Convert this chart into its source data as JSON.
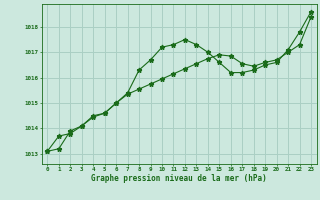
{
  "line1_x": [
    0,
    1,
    2,
    3,
    4,
    5,
    6,
    7,
    8,
    9,
    10,
    11,
    12,
    13,
    14,
    15,
    16,
    17,
    18,
    19,
    20,
    21,
    22,
    23
  ],
  "line1_y": [
    1013.1,
    1013.7,
    1013.8,
    1014.1,
    1014.5,
    1014.6,
    1015.0,
    1015.4,
    1016.3,
    1016.7,
    1017.2,
    1017.3,
    1017.5,
    1017.3,
    1017.0,
    1016.6,
    1016.2,
    1016.2,
    1016.3,
    1016.5,
    1016.6,
    1017.1,
    1017.8,
    1018.6
  ],
  "line2_x": [
    0,
    1,
    2,
    3,
    4,
    5,
    6,
    7,
    8,
    9,
    10,
    11,
    12,
    13,
    14,
    15,
    16,
    17,
    18,
    19,
    20,
    21,
    22,
    23
  ],
  "line2_y": [
    1013.1,
    1013.2,
    1013.9,
    1014.1,
    1014.45,
    1014.6,
    1015.0,
    1015.35,
    1015.55,
    1015.75,
    1015.95,
    1016.15,
    1016.35,
    1016.55,
    1016.75,
    1016.9,
    1016.85,
    1016.55,
    1016.45,
    1016.6,
    1016.7,
    1017.0,
    1017.3,
    1018.4
  ],
  "line_color": "#1a6b1a",
  "bg_color": "#cce8de",
  "grid_color": "#aacfc4",
  "ylabel_ticks": [
    1013,
    1014,
    1015,
    1016,
    1017,
    1018
  ],
  "xlabel": "Graphe pression niveau de la mer (hPa)",
  "ylim": [
    1012.6,
    1018.9
  ],
  "xlim": [
    -0.5,
    23.5
  ],
  "title_partial": "1018"
}
